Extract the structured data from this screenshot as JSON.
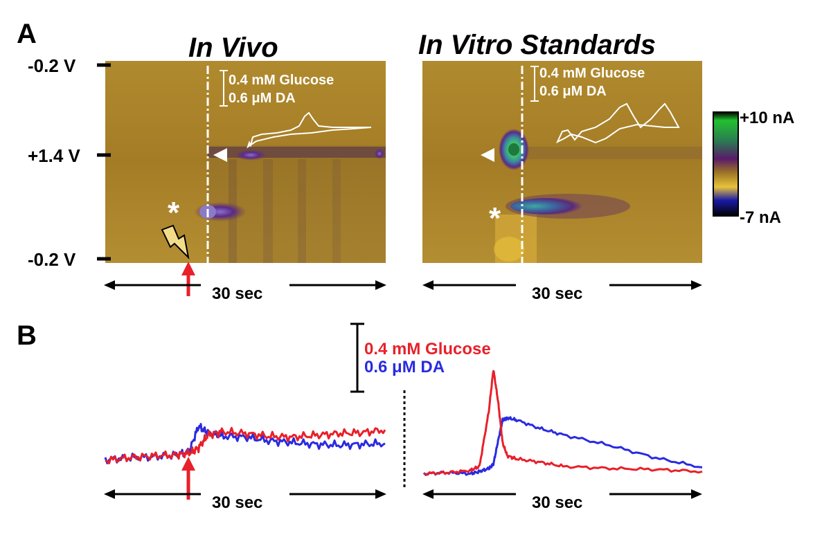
{
  "panel_a": {
    "label": "A",
    "in_vivo": {
      "title": "In Vivo",
      "scale_bar_line1": "0.4 mM Glucose",
      "scale_bar_line2": "0.6 μM  DA",
      "time_label": "30 sec"
    },
    "in_vitro": {
      "title": "In Vitro Standards",
      "scale_bar_line1": "0.4 mM Glucose",
      "scale_bar_line2": "0.6 μM  DA",
      "time_label": "30 sec"
    },
    "voltage_ticks": [
      "-0.2 V",
      "+1.4 V",
      "-0.2 V"
    ],
    "colorbar": {
      "max_label": "+10 nA",
      "min_label": "-7 nA",
      "stops": [
        "#000000",
        "#22bb33",
        "#2a8a5a",
        "#5a1a6a",
        "#a07828",
        "#e8c23a",
        "#1a1aa0",
        "#000000"
      ]
    }
  },
  "panel_b": {
    "label": "B",
    "scale_bar_line1": "0.4 mM Glucose",
    "scale_bar_line2": "0.6 μM DA",
    "glucose_color": "#e8202a",
    "da_color": "#2a2ae0",
    "left_time_label": "30 sec",
    "right_time_label": "30 sec"
  },
  "chart_data": [
    {
      "type": "line",
      "title": "",
      "xlabel": "30 sec",
      "ylabel": "",
      "x": [
        0,
        5,
        10,
        15,
        18,
        20,
        22,
        25,
        30,
        35,
        40,
        45,
        50,
        55,
        60
      ],
      "series": [
        {
          "name": "0.4 mM Glucose",
          "values": [
            0.02,
            0.05,
            0.07,
            0.08,
            0.1,
            0.16,
            0.3,
            0.34,
            0.32,
            0.29,
            0.28,
            0.3,
            0.32,
            0.33,
            0.36
          ]
        },
        {
          "name": "0.6 μM DA",
          "values": [
            0.03,
            0.05,
            0.06,
            0.08,
            0.12,
            0.4,
            0.33,
            0.29,
            0.28,
            0.24,
            0.22,
            0.2,
            0.19,
            0.2,
            0.21
          ]
        }
      ]
    },
    {
      "type": "line",
      "title": "",
      "xlabel": "30 sec",
      "ylabel": "",
      "x": [
        0,
        5,
        10,
        12,
        14,
        15,
        16,
        17,
        18,
        20,
        25,
        30,
        40,
        50,
        60
      ],
      "series": [
        {
          "name": "0.4 mM Glucose",
          "values": [
            0.01,
            0.02,
            0.04,
            0.08,
            0.6,
            1.0,
            0.7,
            0.3,
            0.18,
            0.15,
            0.12,
            0.08,
            0.06,
            0.05,
            0.03
          ]
        },
        {
          "name": "0.6 μM DA",
          "values": [
            0.01,
            0.02,
            0.01,
            0.03,
            0.06,
            0.1,
            0.32,
            0.52,
            0.54,
            0.52,
            0.44,
            0.38,
            0.28,
            0.16,
            0.07
          ]
        }
      ]
    }
  ]
}
